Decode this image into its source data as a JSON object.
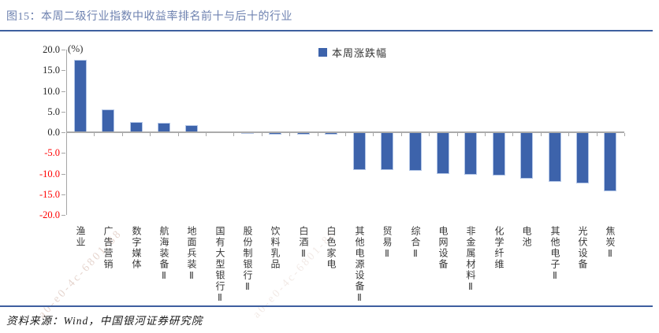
{
  "header": {
    "title": "图15：本周二级行业指数中收益率排名前十与后十的行业"
  },
  "footer": {
    "source": "资料来源：Wind，中国银河证券研究院"
  },
  "watermark": "a0-e0-4c-6801-88",
  "chart_data": {
    "type": "bar",
    "title": "本周二级行业指数中收益率排名前十与后十的行业",
    "unit_label": "(%)",
    "legend": [
      "本周涨跌幅"
    ],
    "legend_position": "top-center",
    "categories": [
      "渔业",
      "广告营销",
      "数字媒体",
      "航海装备Ⅱ",
      "地面兵装Ⅱ",
      "国有大型银行Ⅱ",
      "股份制银行Ⅱ",
      "饮料乳品",
      "白酒Ⅱ",
      "白色家电",
      "其他电源设备Ⅱ",
      "贸易Ⅱ",
      "综合Ⅱ",
      "电网设备",
      "非金属材料Ⅱ",
      "化学纤维",
      "电池",
      "其他电子Ⅱ",
      "光伏设备",
      "焦炭Ⅱ"
    ],
    "values": [
      17.6,
      5.5,
      2.5,
      2.2,
      1.7,
      0.1,
      -0.4,
      -0.6,
      -0.5,
      -0.6,
      -9.2,
      -9.2,
      -9.4,
      -10.0,
      -10.2,
      -10.4,
      -11.2,
      -12.0,
      -12.4,
      -14.3
    ],
    "ylim": [
      -20,
      20
    ],
    "ytick_step": 5,
    "yticks": [
      "20.0",
      "15.0",
      "10.0",
      "5.0",
      "0.0",
      "-5.0",
      "-10.0",
      "-15.0",
      "-20.0"
    ],
    "grid": false,
    "colors": {
      "bar": "#3D63AB",
      "bar_border": "#B3C6E7",
      "positive_tick_label": "#262626",
      "negative_tick_label": "#FF0000",
      "axis": "#A6A6A6",
      "title": "#6E82B0",
      "rule": "#3E5F9F"
    }
  }
}
